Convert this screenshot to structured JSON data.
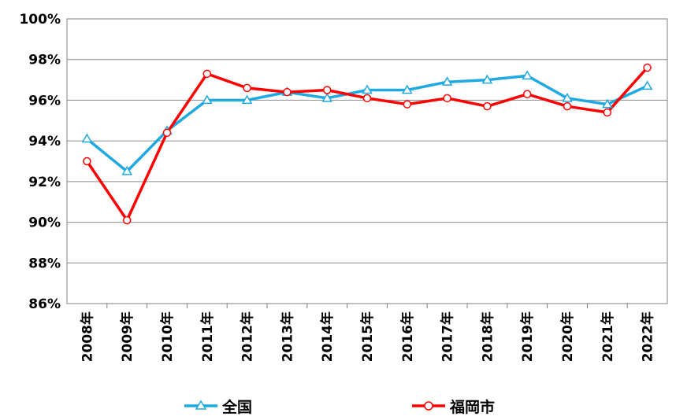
{
  "chart_data": {
    "type": "line",
    "categories": [
      "2008年",
      "2009年",
      "2010年",
      "2011年",
      "2012年",
      "2013年",
      "2014年",
      "2015年",
      "2016年",
      "2017年",
      "2018年",
      "2019年",
      "2020年",
      "2021年",
      "2022年"
    ],
    "ylim": [
      86,
      100
    ],
    "yticks": [
      "86%",
      "88%",
      "90%",
      "92%",
      "94%",
      "96%",
      "98%",
      "100%"
    ],
    "grid": true,
    "legend_position": "bottom",
    "series": [
      {
        "name": "全国",
        "color": "#1fa9e1",
        "marker": "triangle",
        "values": [
          94.1,
          92.5,
          94.5,
          96.0,
          96.0,
          96.4,
          96.1,
          96.5,
          96.5,
          96.9,
          97.0,
          97.2,
          96.1,
          95.8,
          96.7
        ]
      },
      {
        "name": "福岡市",
        "color": "#ff0000",
        "marker": "circle",
        "values": [
          93.0,
          90.1,
          94.4,
          97.3,
          96.6,
          96.4,
          96.5,
          96.1,
          95.8,
          96.1,
          95.7,
          96.3,
          95.7,
          95.4,
          97.6
        ]
      }
    ]
  }
}
